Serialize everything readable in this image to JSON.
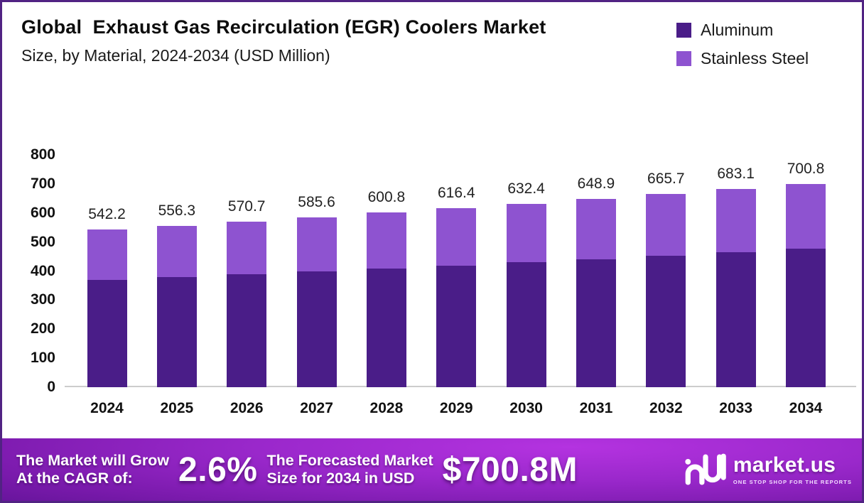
{
  "header": {
    "title": "Global  Exhaust Gas Recirculation (EGR) Coolers Market",
    "subtitle": "Size, by Material, 2024-2034 (USD Million)"
  },
  "legend": {
    "items": [
      {
        "label": "Aluminum",
        "color": "#4a1d88"
      },
      {
        "label": "Stainless Steel",
        "color": "#8e53d0"
      }
    ]
  },
  "chart_data": {
    "type": "bar",
    "stacked": true,
    "title": "Global Exhaust Gas Recirculation (EGR) Coolers Market Size, by Material, 2024-2034 (USD Million)",
    "categories": [
      "2024",
      "2025",
      "2026",
      "2027",
      "2028",
      "2029",
      "2030",
      "2031",
      "2032",
      "2033",
      "2034"
    ],
    "series": [
      {
        "name": "Aluminum",
        "color": "#4a1d88",
        "values": [
          368.7,
          378.3,
          388.1,
          398.2,
          408.5,
          419.2,
          430.0,
          441.3,
          452.7,
          464.5,
          476.5
        ]
      },
      {
        "name": "Stainless Steel",
        "color": "#8e53d0",
        "values": [
          173.5,
          178.0,
          182.6,
          187.4,
          192.3,
          197.2,
          202.4,
          207.6,
          213.0,
          218.6,
          224.3
        ]
      }
    ],
    "totals": [
      542.2,
      556.3,
      570.7,
      585.6,
      600.8,
      616.4,
      632.4,
      648.9,
      665.7,
      683.1,
      700.8
    ],
    "total_labels": [
      "542.2",
      "556.3",
      "570.7",
      "585.6",
      "600.8",
      "616.4",
      "632.4",
      "648.9",
      "665.7",
      "683.1",
      "700.8"
    ],
    "xlabel": "",
    "ylabel": "",
    "ylim": [
      0,
      800
    ],
    "yticks": [
      0,
      100,
      200,
      300,
      400,
      500,
      600,
      700,
      800
    ],
    "grid": false,
    "legend_position": "top-right"
  },
  "banner": {
    "cagr_line1": "The Market will Grow",
    "cagr_line2": "At the CAGR of:",
    "cagr_value": "2.6%",
    "forecast_line1": "The Forecasted Market",
    "forecast_line2": "Size for 2034 in USD",
    "forecast_value": "$700.8M",
    "logo_name": "market.us",
    "logo_tagline": "ONE STOP SHOP FOR THE REPORTS"
  },
  "colors": {
    "aluminum": "#4a1d88",
    "stainless_steel": "#8e53d0",
    "frame_border": "#512383",
    "axis_line": "#cccccc",
    "text": "#111111",
    "banner_bright": "#b433e0",
    "banner_dark": "#470d79"
  }
}
